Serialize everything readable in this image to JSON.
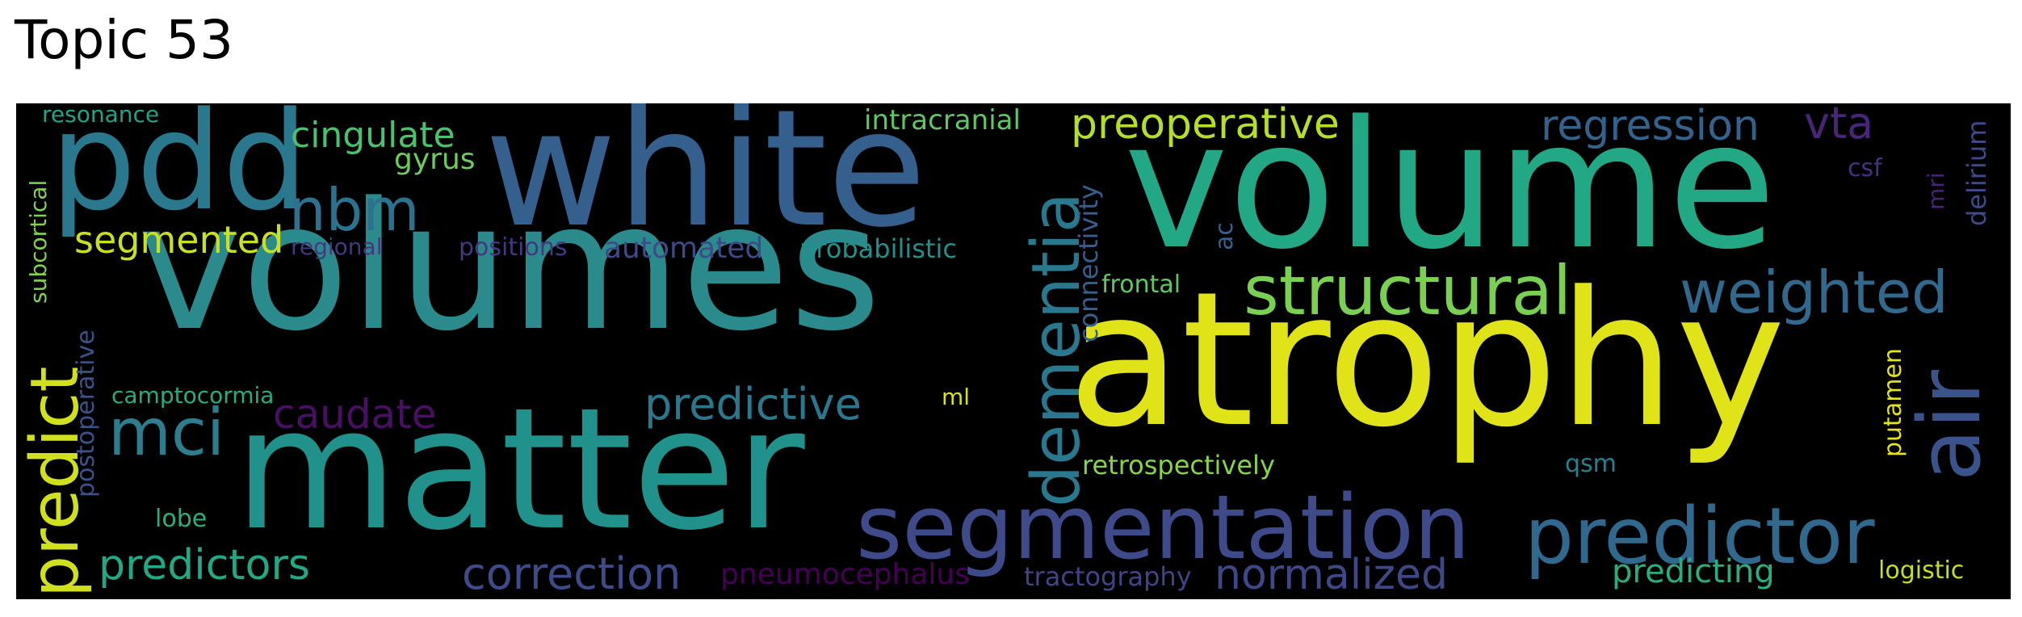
{
  "title": "Topic 53",
  "words": [
    {
      "id": "volumes",
      "text": "volumes",
      "color": "#2a8a8c"
    },
    {
      "id": "atrophy",
      "text": "atrophy",
      "color": "#dfe318"
    },
    {
      "id": "volume",
      "text": "volume",
      "color": "#22a884"
    },
    {
      "id": "white",
      "text": "white",
      "color": "#35608d"
    },
    {
      "id": "matter",
      "text": "matter",
      "color": "#21918c"
    },
    {
      "id": "pdd",
      "text": "pdd",
      "color": "#2a788e"
    },
    {
      "id": "segmentation",
      "text": "segmentation",
      "color": "#3e4a89"
    },
    {
      "id": "predictor",
      "text": "predictor",
      "color": "#31688e"
    },
    {
      "id": "air",
      "text": "air",
      "color": "#3b528b"
    },
    {
      "id": "dementia",
      "text": "dementia",
      "color": "#2a788e"
    },
    {
      "id": "structural",
      "text": "structural",
      "color": "#7ad151"
    },
    {
      "id": "weighted",
      "text": "weighted",
      "color": "#31688e"
    },
    {
      "id": "predict",
      "text": "predict",
      "color": "#d0e11c"
    },
    {
      "id": "mci",
      "text": "mci",
      "color": "#2c7e8e"
    },
    {
      "id": "nbm",
      "text": "nbm",
      "color": "#2c728e"
    },
    {
      "id": "preoperative",
      "text": "preoperative",
      "color": "#b5de2b"
    },
    {
      "id": "regression",
      "text": "regression",
      "color": "#33638d"
    },
    {
      "id": "vta",
      "text": "vta",
      "color": "#482677"
    },
    {
      "id": "predictive",
      "text": "predictive",
      "color": "#2a788e"
    },
    {
      "id": "caudate",
      "text": "caudate",
      "color": "#471063"
    },
    {
      "id": "correction",
      "text": "correction",
      "color": "#3e4a89"
    },
    {
      "id": "normalized",
      "text": "normalized",
      "color": "#3f4788"
    },
    {
      "id": "predictors",
      "text": "predictors",
      "color": "#22a884"
    },
    {
      "id": "predicting",
      "text": "predicting",
      "color": "#29af7f"
    },
    {
      "id": "segmented",
      "text": "segmented",
      "color": "#c8e020"
    },
    {
      "id": "cingulate",
      "text": "cingulate",
      "color": "#4ac16d"
    },
    {
      "id": "gyrus",
      "text": "gyrus",
      "color": "#6ccd5a"
    },
    {
      "id": "pneumocephalus",
      "text": "pneumocephalus",
      "color": "#440154"
    },
    {
      "id": "tractography",
      "text": "tractography",
      "color": "#414487"
    },
    {
      "id": "intracranial",
      "text": "intracranial",
      "color": "#5ec962"
    },
    {
      "id": "retrospectively",
      "text": "retrospectively",
      "color": "#86d549"
    },
    {
      "id": "automated",
      "text": "automated",
      "color": "#3e4a89"
    },
    {
      "id": "probabilistic",
      "text": "probabilistic",
      "color": "#20928c"
    },
    {
      "id": "connectivity",
      "text": "connectivity",
      "color": "#355f8d"
    },
    {
      "id": "positions",
      "text": "positions",
      "color": "#453781"
    },
    {
      "id": "regional",
      "text": "regional",
      "color": "#453781"
    },
    {
      "id": "resonance",
      "text": "resonance",
      "color": "#20a386"
    },
    {
      "id": "subcortical",
      "text": "subcortical",
      "color": "#7fd34e"
    },
    {
      "id": "postoperative",
      "text": "postoperative",
      "color": "#3b528b"
    },
    {
      "id": "camptocormia",
      "text": "camptocormia",
      "color": "#26ad81"
    },
    {
      "id": "lobe",
      "text": "lobe",
      "color": "#29af7f"
    },
    {
      "id": "frontal",
      "text": "frontal",
      "color": "#5ec962"
    },
    {
      "id": "ac",
      "text": "ac",
      "color": "#33638d"
    },
    {
      "id": "ml",
      "text": "ml",
      "color": "#d8e219"
    },
    {
      "id": "qsm",
      "text": "qsm",
      "color": "#27808e"
    },
    {
      "id": "putamen",
      "text": "putamen",
      "color": "#e5e419"
    },
    {
      "id": "logistic",
      "text": "logistic",
      "color": "#c0df25"
    },
    {
      "id": "csf",
      "text": "csf",
      "color": "#46327e"
    },
    {
      "id": "mri",
      "text": "mri",
      "color": "#482475"
    },
    {
      "id": "delirium",
      "text": "delirium",
      "color": "#3e4a89"
    }
  ]
}
